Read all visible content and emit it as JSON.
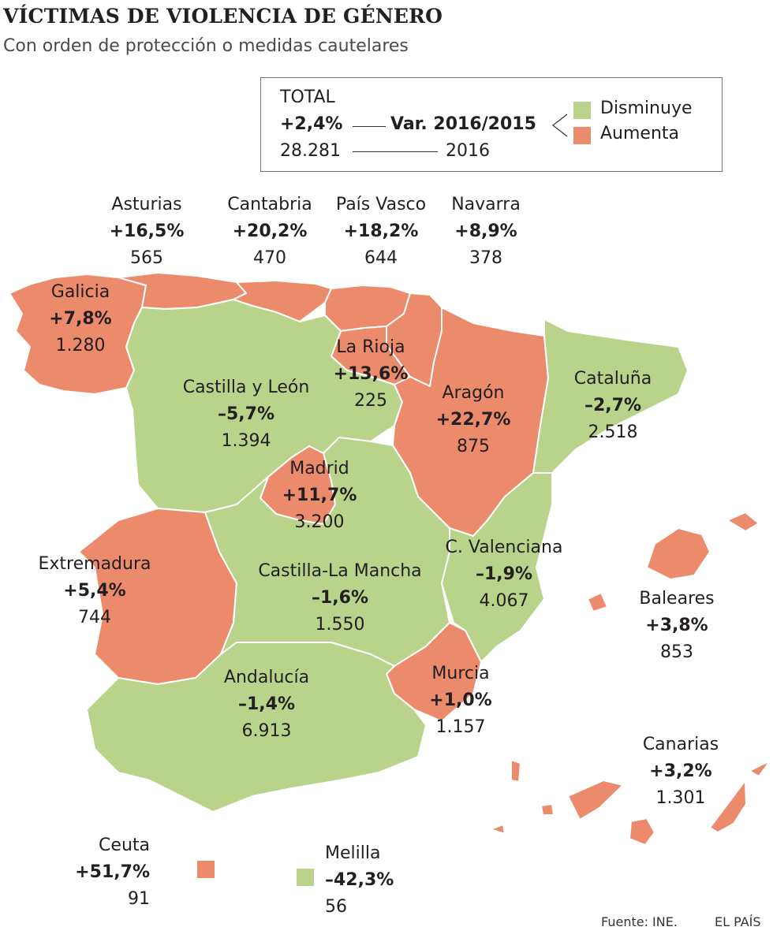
{
  "title": "VÍCTIMAS DE VIOLENCIA DE GÉNERO",
  "subtitle": "Con orden de protección o medidas cautelares",
  "colors": {
    "decrease": "#b9d38a",
    "increase": "#ec8a6c",
    "border": "#ffffff"
  },
  "legend": {
    "total_label": "TOTAL",
    "total_change": "+2,4%",
    "total_count": "28.281",
    "var_label": "Var. 2016/2015",
    "year_label": "2016",
    "decrease_label": "Disminuye",
    "increase_label": "Aumenta"
  },
  "regions": [
    {
      "id": "asturias",
      "name": "Asturias",
      "change": "+16,5%",
      "count": "565",
      "trend": "increase"
    },
    {
      "id": "cantabria",
      "name": "Cantabria",
      "change": "+20,2%",
      "count": "470",
      "trend": "increase"
    },
    {
      "id": "pais-vasco",
      "name": "País Vasco",
      "change": "+18,2%",
      "count": "644",
      "trend": "increase"
    },
    {
      "id": "navarra",
      "name": "Navarra",
      "change": "+8,9%",
      "count": "378",
      "trend": "increase"
    },
    {
      "id": "galicia",
      "name": "Galicia",
      "change": "+7,8%",
      "count": "1.280",
      "trend": "increase"
    },
    {
      "id": "la-rioja",
      "name": "La Rioja",
      "change": "+13,6%",
      "count": "225",
      "trend": "increase"
    },
    {
      "id": "castilla-y-leon",
      "name": "Castilla y León",
      "change": "–5,7%",
      "count": "1.394",
      "trend": "decrease"
    },
    {
      "id": "aragon",
      "name": "Aragón",
      "change": "+22,7%",
      "count": "875",
      "trend": "increase"
    },
    {
      "id": "cataluna",
      "name": "Cataluña",
      "change": "–2,7%",
      "count": "2.518",
      "trend": "decrease"
    },
    {
      "id": "madrid",
      "name": "Madrid",
      "change": "+11,7%",
      "count": "3.200",
      "trend": "increase"
    },
    {
      "id": "extremadura",
      "name": "Extremadura",
      "change": "+5,4%",
      "count": "744",
      "trend": "increase"
    },
    {
      "id": "castilla-la-mancha",
      "name": "Castilla-La Mancha",
      "change": "–1,6%",
      "count": "1.550",
      "trend": "decrease"
    },
    {
      "id": "c-valenciana",
      "name": "C. Valenciana",
      "change": "–1,9%",
      "count": "4.067",
      "trend": "decrease"
    },
    {
      "id": "baleares",
      "name": "Baleares",
      "change": "+3,8%",
      "count": "853",
      "trend": "increase"
    },
    {
      "id": "andalucia",
      "name": "Andalucía",
      "change": "–1,4%",
      "count": "6.913",
      "trend": "decrease"
    },
    {
      "id": "murcia",
      "name": "Murcia",
      "change": "+1,0%",
      "count": "1.157",
      "trend": "increase"
    },
    {
      "id": "canarias",
      "name": "Canarias",
      "change": "+3,2%",
      "count": "1.301",
      "trend": "increase"
    },
    {
      "id": "ceuta",
      "name": "Ceuta",
      "change": "+51,7%",
      "count": "91",
      "trend": "increase"
    },
    {
      "id": "melilla",
      "name": "Melilla",
      "change": "–42,3%",
      "count": "56",
      "trend": "decrease"
    }
  ],
  "footer": {
    "source": "Fuente: INE.",
    "brand": "EL PAÍS"
  }
}
